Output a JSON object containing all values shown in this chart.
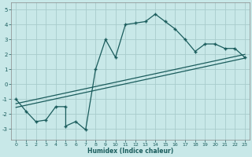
{
  "xlabel": "Humidex (Indice chaleur)",
  "background_color": "#c8e8e8",
  "grid_color": "#a8cccc",
  "line_color": "#1a5c5c",
  "xlim": [
    -0.5,
    23.5
  ],
  "ylim": [
    -3.7,
    5.5
  ],
  "xticks": [
    0,
    1,
    2,
    3,
    4,
    5,
    6,
    7,
    8,
    9,
    10,
    11,
    12,
    13,
    14,
    15,
    16,
    17,
    18,
    19,
    20,
    21,
    22,
    23
  ],
  "yticks": [
    -3,
    -2,
    -1,
    0,
    1,
    2,
    3,
    4,
    5
  ],
  "main_series_x": [
    0,
    1,
    2,
    3,
    4,
    5,
    5,
    6,
    7,
    8,
    9,
    10,
    11,
    12,
    13,
    14,
    15,
    16,
    17,
    18,
    19,
    20,
    21,
    22,
    23
  ],
  "main_series_y": [
    -1.0,
    -1.8,
    -2.5,
    -2.4,
    -1.5,
    -1.5,
    -2.8,
    -2.5,
    -3.05,
    1.0,
    3.0,
    1.8,
    4.0,
    4.1,
    4.2,
    4.7,
    4.2,
    3.7,
    3.0,
    2.2,
    2.7,
    2.7,
    2.4,
    2.4,
    1.8
  ],
  "line1_x": [
    0,
    23
  ],
  "line1_y": [
    -1.3,
    2.0
  ],
  "line2_x": [
    0,
    23
  ],
  "line2_y": [
    -1.55,
    1.75
  ],
  "marker_x": [
    0,
    1,
    2,
    3,
    4,
    5,
    5,
    6,
    7,
    8,
    9,
    10,
    11,
    12,
    13,
    14,
    15,
    16,
    17,
    18,
    19,
    20,
    21,
    22,
    23
  ],
  "marker_y": [
    -1.0,
    -1.8,
    -2.5,
    -2.4,
    -1.5,
    -1.5,
    -2.8,
    -2.5,
    -3.05,
    1.0,
    3.0,
    1.8,
    4.0,
    4.1,
    4.2,
    4.7,
    4.2,
    3.7,
    3.0,
    2.2,
    2.7,
    2.7,
    2.4,
    2.4,
    1.8
  ]
}
